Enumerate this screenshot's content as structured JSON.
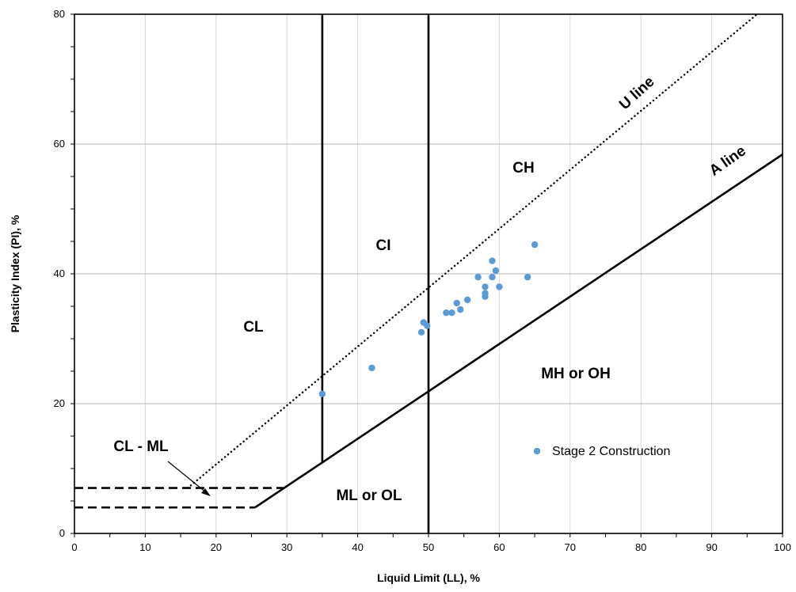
{
  "chart_data": {
    "type": "scatter",
    "title": "",
    "xlabel": "Liquid Limit (LL), %",
    "ylabel": "Plasticity Index (PI), %",
    "xlim": [
      0,
      100
    ],
    "ylim": [
      0,
      80
    ],
    "x_ticks": [
      "0",
      "10",
      "20",
      "30",
      "40",
      "50",
      "60",
      "70",
      "80",
      "90",
      "100"
    ],
    "y_ticks": [
      "0",
      "20",
      "40",
      "60",
      "80"
    ],
    "grid": true,
    "legend_position": "right-middle",
    "point_color": "#5B9BD5",
    "series": [
      {
        "name": "Stage 2 Construction",
        "points": [
          [
            35,
            21.5
          ],
          [
            42,
            25.5
          ],
          [
            49,
            31
          ],
          [
            49.3,
            32.5
          ],
          [
            49.8,
            32
          ],
          [
            52.5,
            34
          ],
          [
            53.3,
            34
          ],
          [
            54,
            35.5
          ],
          [
            54.5,
            34.5
          ],
          [
            55.5,
            36
          ],
          [
            57,
            39.5
          ],
          [
            58,
            36.5
          ],
          [
            58,
            37
          ],
          [
            58,
            38
          ],
          [
            59,
            39.5
          ],
          [
            59,
            42
          ],
          [
            59.5,
            40.5
          ],
          [
            60,
            38
          ],
          [
            64,
            39.5
          ],
          [
            65,
            44.5
          ]
        ]
      }
    ],
    "reference_lines": [
      {
        "label": "A line",
        "style": "solid",
        "x": [
          25.5,
          100
        ],
        "y": [
          4,
          58.4
        ]
      },
      {
        "label": "U line",
        "style": "dotted",
        "x": [
          16,
          96.4
        ],
        "y": [
          7,
          80
        ]
      },
      {
        "label": "",
        "style": "solid",
        "x": [
          35,
          35
        ],
        "y": [
          11,
          80
        ]
      },
      {
        "label": "",
        "style": "solid",
        "x": [
          50,
          50
        ],
        "y": [
          0,
          80
        ]
      },
      {
        "label": "",
        "style": "dashed",
        "x": [
          0,
          29.5
        ],
        "y": [
          7,
          7
        ]
      },
      {
        "label": "",
        "style": "dashed",
        "x": [
          0,
          25.5
        ],
        "y": [
          4,
          4
        ]
      }
    ],
    "annotations": [
      {
        "text": "CL",
        "x": 25,
        "y": 32
      },
      {
        "text": "CI",
        "x": 43.5,
        "y": 44
      },
      {
        "text": "CH",
        "x": 63.5,
        "y": 56
      },
      {
        "text": "MH or OH",
        "x": 72,
        "y": 24.5
      },
      {
        "text": "ML or OL",
        "x": 40,
        "y": 5.5
      },
      {
        "text": "CL - ML",
        "x": 9.5,
        "y": 12.5
      }
    ]
  }
}
